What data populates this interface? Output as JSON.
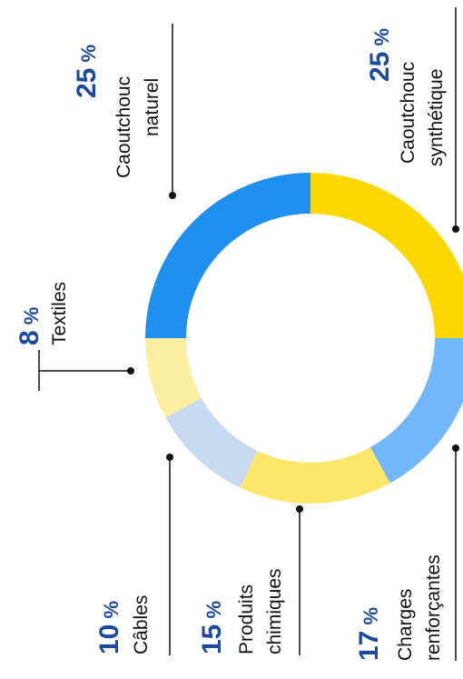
{
  "chart_data": {
    "type": "pie",
    "donut": true,
    "unit": "%",
    "slices": [
      {
        "value": 25,
        "label_lines": [
          "Caoutchouc",
          "naturel"
        ],
        "color": "#1f8ff0"
      },
      {
        "value": 8,
        "label_lines": [
          "Textiles"
        ],
        "color": "#fbeea0"
      },
      {
        "value": 10,
        "label_lines": [
          "Câbles"
        ],
        "color": "#c8daf2"
      },
      {
        "value": 15,
        "label_lines": [
          "Produits",
          "chimiques"
        ],
        "color": "#fde76a"
      },
      {
        "value": 17,
        "label_lines": [
          "Charges",
          "renforçantes"
        ],
        "color": "#72b7fb"
      },
      {
        "value": 25,
        "label_lines": [
          "Caoutchouc",
          "synthétique"
        ],
        "color": "#fdd800"
      }
    ]
  }
}
